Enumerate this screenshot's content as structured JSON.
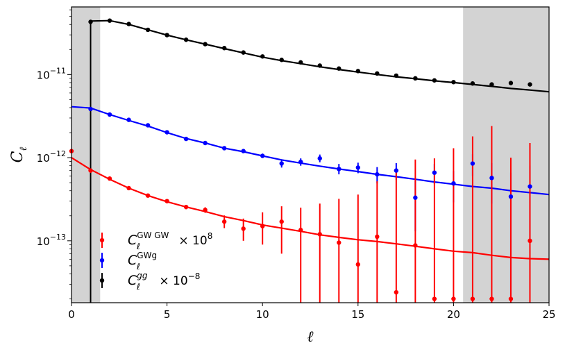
{
  "chart_data": {
    "type": "scatter",
    "title": "",
    "xlabel": "ℓ",
    "ylabel": "C_ℓ",
    "xlim": [
      0,
      25
    ],
    "ylim": [
      1.8e-14,
      6.5e-11
    ],
    "yscale": "log",
    "x_ticks": [
      0,
      5,
      10,
      15,
      20,
      25
    ],
    "y_ticks": [
      {
        "value": 1e-13,
        "base": "10",
        "exp": "−13"
      },
      {
        "value": 1e-12,
        "base": "10",
        "exp": "−12"
      },
      {
        "value": 1e-11,
        "base": "10",
        "exp": "−11"
      }
    ],
    "shaded_regions": [
      [
        0,
        1.5
      ],
      [
        20.5,
        25
      ]
    ],
    "shade_color": "#d3d3d3",
    "legend": {
      "position": "lower-left",
      "entries": [
        {
          "series": "gwgw",
          "label_main": "C",
          "label_sub": "ℓ",
          "label_sup": "GW GW",
          "label_suffix": " × 10",
          "label_suffix_exp": "8"
        },
        {
          "series": "gwg",
          "label_main": "C",
          "label_sub": "ℓ",
          "label_sup": "GWg",
          "label_suffix": "",
          "label_suffix_exp": ""
        },
        {
          "series": "gg",
          "label_main": "C",
          "label_sub": "ℓ",
          "label_sup": "gg",
          "label_suffix": " × 10",
          "label_suffix_exp": "−8"
        }
      ]
    },
    "series": [
      {
        "key": "gg",
        "name": "C_ℓ^gg × 10^-8",
        "color": "#000000",
        "points": [
          {
            "x": 1,
            "y": 4.3e-11,
            "lo": 1e-20,
            "hi": 4.3e-11
          },
          {
            "x": 2,
            "y": 4.45e-11,
            "lo": 4.4e-11,
            "hi": 4.5e-11
          },
          {
            "x": 3,
            "y": 4.05e-11,
            "lo": 4e-11,
            "hi": 4.1e-11
          },
          {
            "x": 4,
            "y": 3.45e-11,
            "lo": 3.4e-11,
            "hi": 3.5e-11
          },
          {
            "x": 5,
            "y": 2.98e-11,
            "lo": 2.95e-11,
            "hi": 3.01e-11
          },
          {
            "x": 6,
            "y": 2.62e-11,
            "lo": 2.6e-11,
            "hi": 2.65e-11
          },
          {
            "x": 7,
            "y": 2.32e-11,
            "lo": 2.3e-11,
            "hi": 2.34e-11
          },
          {
            "x": 8,
            "y": 2.08e-11,
            "lo": 2.06e-11,
            "hi": 2.1e-11
          },
          {
            "x": 9,
            "y": 1.84e-11,
            "lo": 1.82e-11,
            "hi": 1.86e-11
          },
          {
            "x": 10,
            "y": 1.65e-11,
            "lo": 1.63e-11,
            "hi": 1.67e-11
          },
          {
            "x": 11,
            "y": 1.5e-11,
            "lo": 1.48e-11,
            "hi": 1.52e-11
          },
          {
            "x": 12,
            "y": 1.4e-11,
            "lo": 1.38e-11,
            "hi": 1.42e-11
          },
          {
            "x": 13,
            "y": 1.28e-11,
            "lo": 1.26e-11,
            "hi": 1.3e-11
          },
          {
            "x": 14,
            "y": 1.18e-11,
            "lo": 1.16e-11,
            "hi": 1.2e-11
          },
          {
            "x": 15,
            "y": 1.1e-11,
            "lo": 1.08e-11,
            "hi": 1.12e-11
          },
          {
            "x": 16,
            "y": 1.03e-11,
            "lo": 1.01e-11,
            "hi": 1.05e-11
          },
          {
            "x": 17,
            "y": 9.7e-12,
            "lo": 9.5e-12,
            "hi": 9.9e-12
          },
          {
            "x": 18,
            "y": 9e-12,
            "lo": 8.8e-12,
            "hi": 9.2e-12
          },
          {
            "x": 19,
            "y": 8.5e-12,
            "lo": 8.3e-12,
            "hi": 8.7e-12
          },
          {
            "x": 20,
            "y": 8.1e-12,
            "lo": 7.9e-12,
            "hi": 8.3e-12
          },
          {
            "x": 21,
            "y": 7.8e-12,
            "lo": 7.6e-12,
            "hi": 8e-12
          },
          {
            "x": 22,
            "y": 7.6e-12,
            "lo": 7.4e-12,
            "hi": 7.8e-12
          },
          {
            "x": 23,
            "y": 7.9e-12,
            "lo": 7.7e-12,
            "hi": 8.1e-12
          },
          {
            "x": 24,
            "y": 7.6e-12,
            "lo": 7.4e-12,
            "hi": 7.8e-12
          }
        ],
        "model_x": [
          1,
          2,
          3,
          4,
          5,
          6,
          7,
          8,
          9,
          10,
          11,
          12,
          13,
          14,
          15,
          16,
          17,
          18,
          19,
          20,
          21,
          22,
          23,
          24,
          25
        ],
        "model_y": [
          4.4e-11,
          4.45e-11,
          4e-11,
          3.45e-11,
          2.98e-11,
          2.62e-11,
          2.32e-11,
          2.05e-11,
          1.82e-11,
          1.62e-11,
          1.47e-11,
          1.35e-11,
          1.24e-11,
          1.15e-11,
          1.07e-11,
          1e-11,
          9.4e-12,
          8.9e-12,
          8.4e-12,
          8e-12,
          7.6e-12,
          7.2e-12,
          6.8e-12,
          6.5e-12,
          6.2e-12
        ]
      },
      {
        "key": "gwg",
        "name": "C_ℓ^GWg",
        "color": "#0000ff",
        "points": [
          {
            "x": 1,
            "y": 3.85e-12,
            "lo": 3.75e-12,
            "hi": 3.95e-12
          },
          {
            "x": 2,
            "y": 3.3e-12,
            "lo": 3.22e-12,
            "hi": 3.38e-12
          },
          {
            "x": 3,
            "y": 2.85e-12,
            "lo": 2.78e-12,
            "hi": 2.92e-12
          },
          {
            "x": 4,
            "y": 2.45e-12,
            "lo": 2.38e-12,
            "hi": 2.52e-12
          },
          {
            "x": 5,
            "y": 2.02e-12,
            "lo": 1.96e-12,
            "hi": 2.08e-12
          },
          {
            "x": 6,
            "y": 1.68e-12,
            "lo": 1.62e-12,
            "hi": 1.74e-12
          },
          {
            "x": 7,
            "y": 1.5e-12,
            "lo": 1.44e-12,
            "hi": 1.56e-12
          },
          {
            "x": 8,
            "y": 1.3e-12,
            "lo": 1.25e-12,
            "hi": 1.36e-12
          },
          {
            "x": 9,
            "y": 1.2e-12,
            "lo": 1.15e-12,
            "hi": 1.26e-12
          },
          {
            "x": 10,
            "y": 1.05e-12,
            "lo": 1e-12,
            "hi": 1.12e-12
          },
          {
            "x": 11,
            "y": 8.5e-13,
            "lo": 7.6e-13,
            "hi": 9.4e-13
          },
          {
            "x": 12,
            "y": 8.9e-13,
            "lo": 8e-13,
            "hi": 9.8e-13
          },
          {
            "x": 13,
            "y": 9.8e-13,
            "lo": 8.8e-13,
            "hi": 1.09e-12
          },
          {
            "x": 14,
            "y": 7.3e-13,
            "lo": 6.3e-13,
            "hi": 8.4e-13
          },
          {
            "x": 15,
            "y": 7.6e-13,
            "lo": 6.5e-13,
            "hi": 8.7e-13
          },
          {
            "x": 16,
            "y": 6.3e-13,
            "lo": 4.9e-13,
            "hi": 7.7e-13
          },
          {
            "x": 17,
            "y": 7e-13,
            "lo": 5.4e-13,
            "hi": 8.6e-13
          },
          {
            "x": 18,
            "y": 3.3e-13,
            "lo": 1.3e-13,
            "hi": 5.3e-13
          },
          {
            "x": 19,
            "y": 6.6e-13,
            "lo": 4.8e-13,
            "hi": 8.4e-13
          },
          {
            "x": 20,
            "y": 4.9e-13,
            "lo": 2.9e-13,
            "hi": 6.9e-13
          },
          {
            "x": 21,
            "y": 8.5e-13,
            "lo": 6e-13,
            "hi": 1.1e-12
          },
          {
            "x": 22,
            "y": 5.7e-13,
            "lo": 2.8e-13,
            "hi": 8.6e-13
          },
          {
            "x": 23,
            "y": 3.4e-13,
            "lo": 2e-14,
            "hi": 6.6e-13
          },
          {
            "x": 24,
            "y": 4.5e-13,
            "lo": 1e-13,
            "hi": 8e-13
          }
        ],
        "model_x": [
          0,
          1,
          2,
          3,
          4,
          5,
          6,
          7,
          8,
          9,
          10,
          11,
          12,
          13,
          14,
          15,
          16,
          17,
          18,
          19,
          20,
          21,
          22,
          23,
          24,
          25
        ],
        "model_y": [
          4.1e-12,
          3.95e-12,
          3.3e-12,
          2.8e-12,
          2.4e-12,
          2e-12,
          1.7e-12,
          1.5e-12,
          1.3e-12,
          1.18e-12,
          1.05e-12,
          9.4e-13,
          8.6e-13,
          7.9e-13,
          7.3e-13,
          6.8e-13,
          6.3e-13,
          5.9e-13,
          5.5e-13,
          5.1e-13,
          4.8e-13,
          4.5e-13,
          4.3e-13,
          4e-13,
          3.8e-13,
          3.6e-13
        ]
      },
      {
        "key": "gwgw",
        "name": "C_ℓ^GW GW × 10^8",
        "color": "#ff0000",
        "points": [
          {
            "x": 0,
            "y": 1.2e-12,
            "lo": 1.18e-12,
            "hi": 1.22e-12
          },
          {
            "x": 1,
            "y": 7e-13,
            "lo": 6.6e-13,
            "hi": 7.4e-13
          },
          {
            "x": 2,
            "y": 5.6e-13,
            "lo": 5.35e-13,
            "hi": 5.85e-13
          },
          {
            "x": 3,
            "y": 4.3e-13,
            "lo": 4.12e-13,
            "hi": 4.48e-13
          },
          {
            "x": 4,
            "y": 3.5e-13,
            "lo": 3.36e-13,
            "hi": 3.64e-13
          },
          {
            "x": 5,
            "y": 3e-13,
            "lo": 2.87e-13,
            "hi": 3.13e-13
          },
          {
            "x": 6,
            "y": 2.55e-13,
            "lo": 2.4e-13,
            "hi": 2.7e-13
          },
          {
            "x": 7,
            "y": 2.35e-13,
            "lo": 2.17e-13,
            "hi": 2.53e-13
          },
          {
            "x": 8,
            "y": 1.7e-13,
            "lo": 1.42e-13,
            "hi": 2.02e-13
          },
          {
            "x": 9,
            "y": 1.4e-13,
            "lo": 1e-13,
            "hi": 1.85e-13
          },
          {
            "x": 10,
            "y": 1.5e-13,
            "lo": 9e-14,
            "hi": 2.2e-13
          },
          {
            "x": 11,
            "y": 1.7e-13,
            "lo": 7e-14,
            "hi": 2.6e-13
          },
          {
            "x": 12,
            "y": 1.35e-13,
            "lo": 1e-20,
            "hi": 2.5e-13
          },
          {
            "x": 13,
            "y": 1.2e-13,
            "lo": 1e-20,
            "hi": 2.8e-13
          },
          {
            "x": 14,
            "y": 9.5e-14,
            "lo": 1e-20,
            "hi": 3.2e-13
          },
          {
            "x": 15,
            "y": 5.2e-14,
            "lo": 1e-20,
            "hi": 3.6e-13
          },
          {
            "x": 16,
            "y": 1.12e-13,
            "lo": 1e-20,
            "hi": 5.2e-13
          },
          {
            "x": 17,
            "y": 2.4e-14,
            "lo": 1e-20,
            "hi": 6.9e-13
          },
          {
            "x": 18,
            "y": 8.8e-14,
            "lo": 1e-20,
            "hi": 9.5e-13
          },
          {
            "x": 19,
            "y": 2e-14,
            "lo": 1e-20,
            "hi": 9.8e-13
          },
          {
            "x": 20,
            "y": 2e-14,
            "lo": 1e-20,
            "hi": 1.3e-12
          },
          {
            "x": 21,
            "y": 2e-14,
            "lo": 1e-20,
            "hi": 1.8e-12
          },
          {
            "x": 22,
            "y": 2e-14,
            "lo": 1e-20,
            "hi": 2.4e-12
          },
          {
            "x": 23,
            "y": 2e-14,
            "lo": 1e-20,
            "hi": 1e-12
          },
          {
            "x": 24,
            "y": 1e-13,
            "lo": 1e-20,
            "hi": 1.5e-12
          }
        ],
        "model_x": [
          0,
          1,
          2,
          3,
          4,
          5,
          6,
          7,
          8,
          9,
          10,
          11,
          12,
          13,
          14,
          15,
          16,
          17,
          18,
          19,
          20,
          21,
          22,
          23,
          24,
          25
        ],
        "model_y": [
          1e-12,
          7.2e-13,
          5.5e-13,
          4.3e-13,
          3.5e-13,
          2.95e-13,
          2.55e-13,
          2.25e-13,
          1.95e-13,
          1.75e-13,
          1.55e-13,
          1.42e-13,
          1.3e-13,
          1.18e-13,
          1.1e-13,
          1.03e-13,
          9.8e-14,
          9.2e-14,
          8.6e-14,
          8e-14,
          7.5e-14,
          7.2e-14,
          6.7e-14,
          6.3e-14,
          6.1e-14,
          6e-14
        ]
      }
    ]
  }
}
